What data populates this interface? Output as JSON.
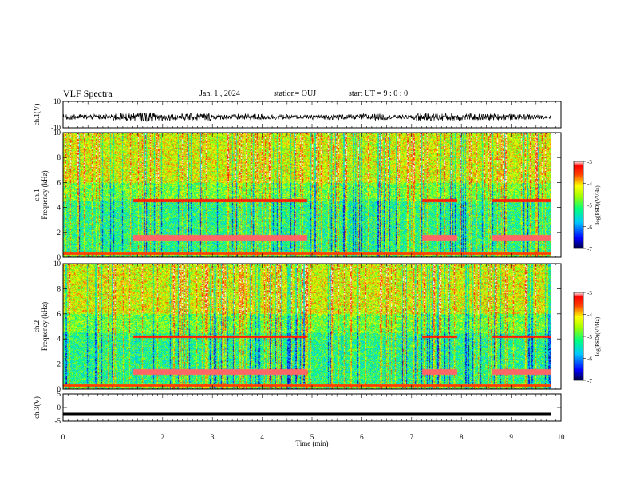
{
  "header": {
    "title": "VLF Spectra",
    "date": "Jan. 1 , 2024",
    "station": "station= OUJ",
    "start": "start UT =  9 : 0 : 0"
  },
  "chart_data": [
    {
      "type": "line",
      "panel": "ch1-waveform",
      "ylabel": "ch.1(V)",
      "ylim": [
        -10,
        10
      ],
      "yticks": [
        "10",
        "-10"
      ],
      "xlim": [
        0,
        10
      ],
      "x": [
        0,
        0.5,
        1.0,
        1.5,
        2.0,
        2.5,
        3.0,
        3.5,
        4.0,
        4.5,
        5.0,
        5.5,
        6.0,
        6.5,
        7.0,
        7.5,
        8.0,
        8.5,
        9.0,
        9.5,
        9.8
      ],
      "y": [
        0,
        1,
        -1,
        3,
        -4,
        2,
        -3,
        1,
        -2,
        1,
        0,
        1,
        -1,
        2,
        0,
        -3,
        3,
        -2,
        2,
        -1,
        0
      ]
    },
    {
      "type": "heatmap",
      "panel": "ch1-spectrogram",
      "ylabel": "ch.1\nFrequency (kHz)",
      "xlim": [
        0,
        10
      ],
      "ylim": [
        0,
        10
      ],
      "yticks": [
        "0",
        "2",
        "4",
        "6",
        "8",
        "10"
      ],
      "colorbar": {
        "label": "log(PSD)(V²/Hz)",
        "range": [
          -7,
          -3
        ],
        "ticks": [
          "-3",
          "-4",
          "-5",
          "-6",
          "-7"
        ]
      }
    },
    {
      "type": "heatmap",
      "panel": "ch2-spectrogram",
      "ylabel": "ch.2\nFrequency (kHz)",
      "xlim": [
        0,
        10
      ],
      "ylim": [
        0,
        10
      ],
      "yticks": [
        "0",
        "2",
        "4",
        "6",
        "8",
        "10"
      ],
      "colorbar": {
        "label": "log(PSD)(V²/Hz)",
        "range": [
          -7,
          -3
        ],
        "ticks": [
          "-3",
          "-4",
          "-5",
          "-6",
          "-7"
        ]
      }
    },
    {
      "type": "line",
      "panel": "ch3-waveform",
      "ylabel": "ch.3(V)",
      "ylim": [
        -5,
        5
      ],
      "yticks": [
        "5",
        "0",
        "-5"
      ],
      "xlim": [
        0,
        10
      ],
      "x": [
        0,
        9.8
      ],
      "y": [
        -2.5,
        -2.5
      ],
      "xlabel": "Time (min)",
      "xticks": [
        "0",
        "1",
        "2",
        "3",
        "4",
        "5",
        "6",
        "7",
        "8",
        "9",
        "10"
      ]
    }
  ]
}
